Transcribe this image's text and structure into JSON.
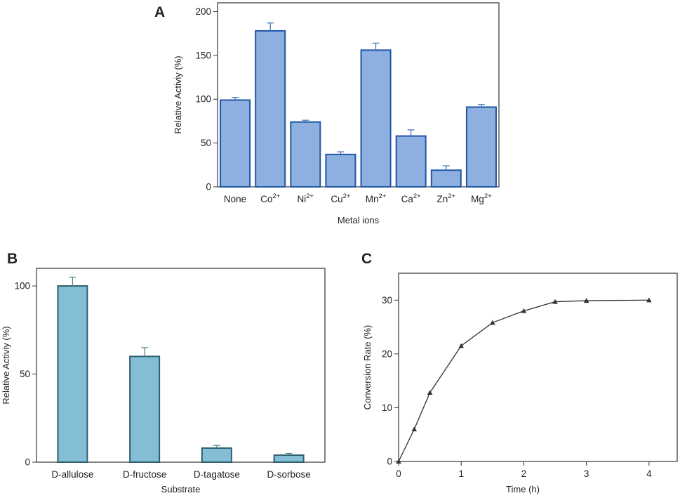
{
  "chart_data": [
    {
      "panel": "A",
      "type": "bar",
      "categories": [
        {
          "base": "None",
          "sup": ""
        },
        {
          "base": "Co",
          "sup": "2+"
        },
        {
          "base": "Ni",
          "sup": "2+"
        },
        {
          "base": "Cu",
          "sup": "2+"
        },
        {
          "base": "Mn",
          "sup": "2+"
        },
        {
          "base": "Ca",
          "sup": "2+"
        },
        {
          "base": "Zn",
          "sup": "2+"
        },
        {
          "base": "Mg",
          "sup": "2+"
        }
      ],
      "values": [
        99,
        178,
        74,
        37,
        156,
        58,
        19,
        91
      ],
      "errors": [
        3,
        9,
        2,
        3,
        8,
        7,
        5,
        3
      ],
      "xlabel": "Metal ions",
      "ylabel": "Relative Activiy (%)",
      "ylim": [
        0,
        210
      ],
      "yticks": [
        0,
        50,
        100,
        150,
        200
      ],
      "colors": {
        "fill": "#8db0e0",
        "stroke": "#1f56a8",
        "error": "#3a6fb5"
      }
    },
    {
      "panel": "B",
      "type": "bar",
      "categories": [
        "D-allulose",
        "D-fructose",
        "D-tagatose",
        "D-sorbose"
      ],
      "values": [
        100,
        60,
        8,
        4
      ],
      "errors": [
        5,
        5,
        1.5,
        1
      ],
      "xlabel": "Substrate",
      "ylabel": "Relative Activiy (%)",
      "ylim": [
        0,
        110
      ],
      "yticks": [
        0,
        50,
        100
      ],
      "colors": {
        "fill": "#84bed6",
        "stroke": "#2e5f6e",
        "error": "#4a7f8e"
      }
    },
    {
      "panel": "C",
      "type": "line",
      "x": [
        0,
        0.25,
        0.5,
        1,
        1.5,
        2,
        2.5,
        3,
        4
      ],
      "y": [
        0,
        6,
        12.8,
        21.5,
        25.8,
        28,
        29.7,
        29.9,
        30
      ],
      "xlabel": "Time (h)",
      "ylabel": "Conversion Rate (%)",
      "xlim": [
        0,
        4.45
      ],
      "ylim": [
        0,
        35
      ],
      "xticks": [
        0,
        1,
        2,
        3,
        4
      ],
      "yticks": [
        0,
        10,
        20,
        30
      ],
      "marker": "triangle",
      "colors": {
        "line": "#333333",
        "marker": "#333333"
      }
    }
  ]
}
